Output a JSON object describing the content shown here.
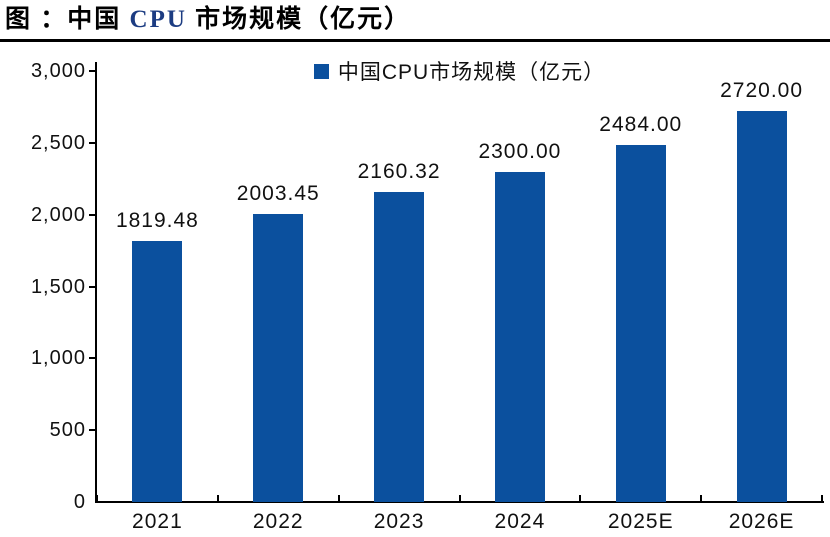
{
  "title": {
    "part_before_cpu": "图 ：中国 ",
    "cpu": "CPU",
    "part_after_cpu": " 市场规模（亿元）"
  },
  "legend": {
    "label": "中国CPU市场规模（亿元）"
  },
  "colors": {
    "bar": "#0b509e",
    "legend_marker": "#0b509e",
    "axis": "#000000",
    "title_cpu": "#1c3c82",
    "background": "#ffffff"
  },
  "chart_data": {
    "type": "bar",
    "title": "中国 CPU 市场规模（亿元）",
    "categories": [
      "2021",
      "2022",
      "2023",
      "2024",
      "2025E",
      "2026E"
    ],
    "values": [
      1819.48,
      2003.45,
      2160.32,
      2300.0,
      2484.0,
      2720.0
    ],
    "value_labels": [
      "1819.48",
      "2003.45",
      "2160.32",
      "2300.00",
      "2484.00",
      "2720.00"
    ],
    "xlabel": "",
    "ylabel": "",
    "ylim": [
      0,
      3000
    ],
    "ytick_step": 500,
    "ytick_labels": [
      "0",
      "500",
      "1,000",
      "1,500",
      "2,000",
      "2,500",
      "3,000"
    ],
    "legend_entries": [
      "中国CPU市场规模（亿元）"
    ],
    "legend_position": "top-center",
    "grid": false
  }
}
